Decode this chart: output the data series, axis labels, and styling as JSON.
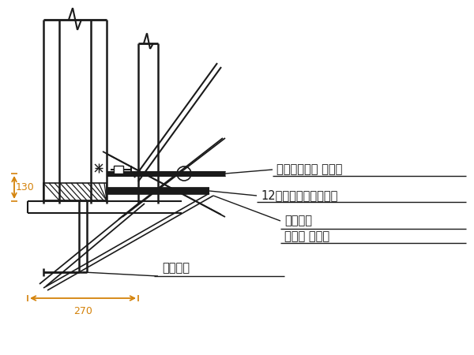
{
  "bg_color": "#ffffff",
  "line_color": "#1a1a1a",
  "dim_color": "#d4820a",
  "text_color": "#1a1a1a",
  "labels": {
    "outer_rod": "外连杆（周转 使用）",
    "channel_steel": "12号槽钢（周转使用）",
    "nut_line1": "连接螺母",
    "nut_line2": "（周转 使用）",
    "anchor_bolt": "地脚螺栓",
    "dim_130": "130",
    "dim_270": "270"
  },
  "fig_width": 6.0,
  "fig_height": 4.5,
  "dpi": 100
}
